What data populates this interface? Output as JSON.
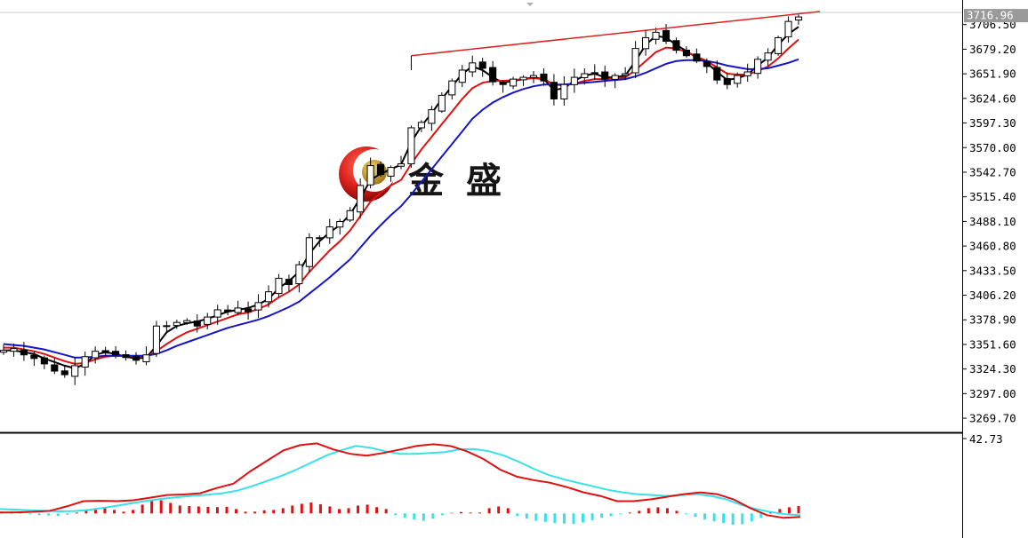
{
  "logo": {
    "text_1": "金",
    "text_2": "盛"
  },
  "price_panel": {
    "current_price": "3716.96",
    "ticks": [
      "3706.50",
      "3679.20",
      "3651.90",
      "3624.60",
      "3597.30",
      "3570.00",
      "3542.70",
      "3515.40",
      "3488.10",
      "3460.80",
      "3433.50",
      "3406.20",
      "3378.90",
      "3351.60",
      "3324.30",
      "3297.00",
      "3269.70"
    ]
  },
  "indicator_panel": {
    "max_label": "42.73"
  },
  "colors": {
    "up_candle": "#ffffff",
    "down_candle": "#000000",
    "ma_fast": "#000000",
    "ma_mid": "#e01010",
    "ma_slow": "#1414c8",
    "trendline": "#e02020",
    "macd_line": "#e01010",
    "signal_line": "#38e0e8",
    "hist_positive": "#e01010",
    "hist_negative": "#38e0e8",
    "price_box": "#9a9a9a"
  },
  "chart_data": [
    {
      "type": "candlestick",
      "ylim": [
        3255,
        3720
      ],
      "current_price": 3716.96,
      "y_ticks": [
        3706.5,
        3679.2,
        3651.9,
        3624.6,
        3597.3,
        3570.0,
        3542.7,
        3515.4,
        3488.1,
        3460.8,
        3433.5,
        3406.2,
        3378.9,
        3351.6,
        3324.3,
        3297.0,
        3269.7
      ],
      "close_path": [
        3345,
        3347,
        3340,
        3336,
        3330,
        3322,
        3318,
        3328,
        3338,
        3344,
        3342,
        3340,
        3337,
        3334,
        3340,
        3372,
        3372,
        3376,
        3378,
        3372,
        3382,
        3390,
        3388,
        3392,
        3388,
        3398,
        3410,
        3425,
        3418,
        3440,
        3470,
        3470,
        3482,
        3488,
        3500,
        3528,
        3550,
        3540,
        3548,
        3552,
        3592,
        3598,
        3612,
        3628,
        3644,
        3656,
        3664,
        3658,
        3643,
        3640,
        3646,
        3648,
        3650,
        3644,
        3624,
        3640,
        3648,
        3652,
        3652,
        3646,
        3650,
        3652,
        3680,
        3692,
        3698,
        3688,
        3678,
        3672,
        3666,
        3660,
        3645,
        3640,
        3650,
        3654,
        3668,
        3675,
        3692,
        3710,
        3715
      ],
      "moving_averages": [
        {
          "color": "#000000",
          "values": [
            3345,
            3345,
            3343,
            3341,
            3336,
            3332,
            3328,
            3325,
            3330,
            3340,
            3343,
            3341,
            3338,
            3336,
            3337,
            3350,
            3365,
            3372,
            3375,
            3377,
            3380,
            3384,
            3388,
            3390,
            3392,
            3396,
            3402,
            3414,
            3422,
            3432,
            3452,
            3466,
            3476,
            3484,
            3496,
            3514,
            3534,
            3541,
            3546,
            3551,
            3576,
            3594,
            3608,
            3624,
            3638,
            3652,
            3660,
            3656,
            3648,
            3642,
            3644,
            3646,
            3648,
            3646,
            3634,
            3636,
            3644,
            3650,
            3652,
            3648,
            3648,
            3650,
            3666,
            3684,
            3694,
            3692,
            3684,
            3677,
            3670,
            3664,
            3654,
            3645,
            3647,
            3651,
            3661,
            3670,
            3684,
            3696,
            3704
          ]
        },
        {
          "color": "#e01010",
          "values": [
            3348,
            3348,
            3346,
            3344,
            3341,
            3337,
            3333,
            3330,
            3331,
            3335,
            3338,
            3339,
            3339,
            3338,
            3338,
            3344,
            3352,
            3359,
            3365,
            3369,
            3373,
            3377,
            3381,
            3385,
            3387,
            3391,
            3396,
            3404,
            3410,
            3418,
            3432,
            3444,
            3456,
            3466,
            3478,
            3494,
            3510,
            3520,
            3528,
            3534,
            3552,
            3568,
            3582,
            3596,
            3610,
            3624,
            3636,
            3642,
            3644,
            3644,
            3645,
            3646,
            3647,
            3646,
            3640,
            3639,
            3641,
            3644,
            3646,
            3646,
            3647,
            3648,
            3656,
            3666,
            3676,
            3681,
            3680,
            3676,
            3671,
            3666,
            3659,
            3652,
            3651,
            3651,
            3655,
            3660,
            3669,
            3680,
            3690
          ]
        },
        {
          "color": "#1414c8",
          "values": [
            3352,
            3351,
            3350,
            3348,
            3346,
            3343,
            3340,
            3337,
            3337,
            3338,
            3339,
            3339,
            3339,
            3339,
            3339,
            3341,
            3345,
            3350,
            3354,
            3358,
            3362,
            3366,
            3370,
            3373,
            3376,
            3379,
            3383,
            3388,
            3393,
            3399,
            3408,
            3417,
            3426,
            3436,
            3446,
            3459,
            3472,
            3484,
            3495,
            3505,
            3518,
            3532,
            3546,
            3560,
            3574,
            3588,
            3602,
            3612,
            3620,
            3626,
            3631,
            3635,
            3638,
            3640,
            3640,
            3640,
            3641,
            3642,
            3643,
            3644,
            3645,
            3646,
            3649,
            3653,
            3658,
            3663,
            3666,
            3667,
            3667,
            3666,
            3664,
            3661,
            3659,
            3657,
            3657,
            3658,
            3661,
            3664,
            3668
          ]
        }
      ],
      "trendline": {
        "from_index": 40,
        "from_value": 3672,
        "to_value": 3721
      }
    },
    {
      "type": "macd",
      "max_label": 42.73,
      "ylim": [
        -12,
        42.73
      ],
      "histogram": [
        1,
        0.5,
        0.8,
        -0.5,
        -1,
        -1.2,
        -1.5,
        -0.8,
        0.5,
        2,
        3,
        3,
        2,
        1,
        2,
        5,
        7,
        7.5,
        6,
        4.5,
        4.2,
        4,
        3.8,
        3.6,
        3.8,
        2.5,
        1,
        1,
        1.8,
        2,
        3,
        4.5,
        5.5,
        6.2,
        5.2,
        4,
        2.5,
        3,
        4.5,
        5,
        3.6,
        2.5,
        -1,
        -2.5,
        -3.5,
        -4.2,
        -3,
        -1,
        0.3,
        0.8,
        0.5,
        0.5,
        3,
        4,
        3,
        -1.5,
        -3,
        -4.2,
        -4.8,
        -5.5,
        -5.8,
        -6,
        -5.2,
        -4,
        -2.5,
        -1.5,
        -0.5,
        0.5,
        1.5,
        3,
        3.5,
        3,
        1.5,
        -0.5,
        -2,
        -3.5,
        -4.5,
        -5.5,
        -6.5,
        -6.2,
        -4.5,
        -2.5,
        0.8,
        2.5,
        3.5,
        4.2
      ],
      "macd": [
        0.5,
        0.6,
        0.9,
        1.5,
        4,
        7,
        7.2,
        7,
        7.5,
        9,
        10.5,
        10.8,
        11.5,
        14.5,
        17,
        24,
        30,
        36,
        39,
        40,
        36.5,
        34,
        33,
        34.5,
        36.5,
        38.5,
        39.5,
        38.5,
        35.5,
        31,
        25,
        21,
        19,
        17.5,
        15,
        12,
        10,
        7,
        7,
        8,
        9.5,
        11,
        12,
        11,
        8,
        3,
        -1,
        -2.5,
        -2
      ],
      "signal": [
        2.5,
        2.2,
        1.8,
        1.5,
        1.2,
        1.4,
        2,
        3.2,
        4.5,
        6,
        7.3,
        8.4,
        9.3,
        10.1,
        10.7,
        11.5,
        13,
        15.5,
        18.5,
        21.5,
        25,
        29,
        33,
        36,
        38.5,
        37.5,
        35.5,
        34,
        34,
        34.5,
        35,
        36.5,
        36.8,
        35.5,
        33,
        29.5,
        25.5,
        22,
        19.5,
        17.5,
        15.5,
        13.5,
        12,
        11,
        10.5,
        10,
        10.5,
        11,
        10,
        8,
        5,
        2.5,
        0.8,
        -0.5,
        -1
      ]
    }
  ]
}
